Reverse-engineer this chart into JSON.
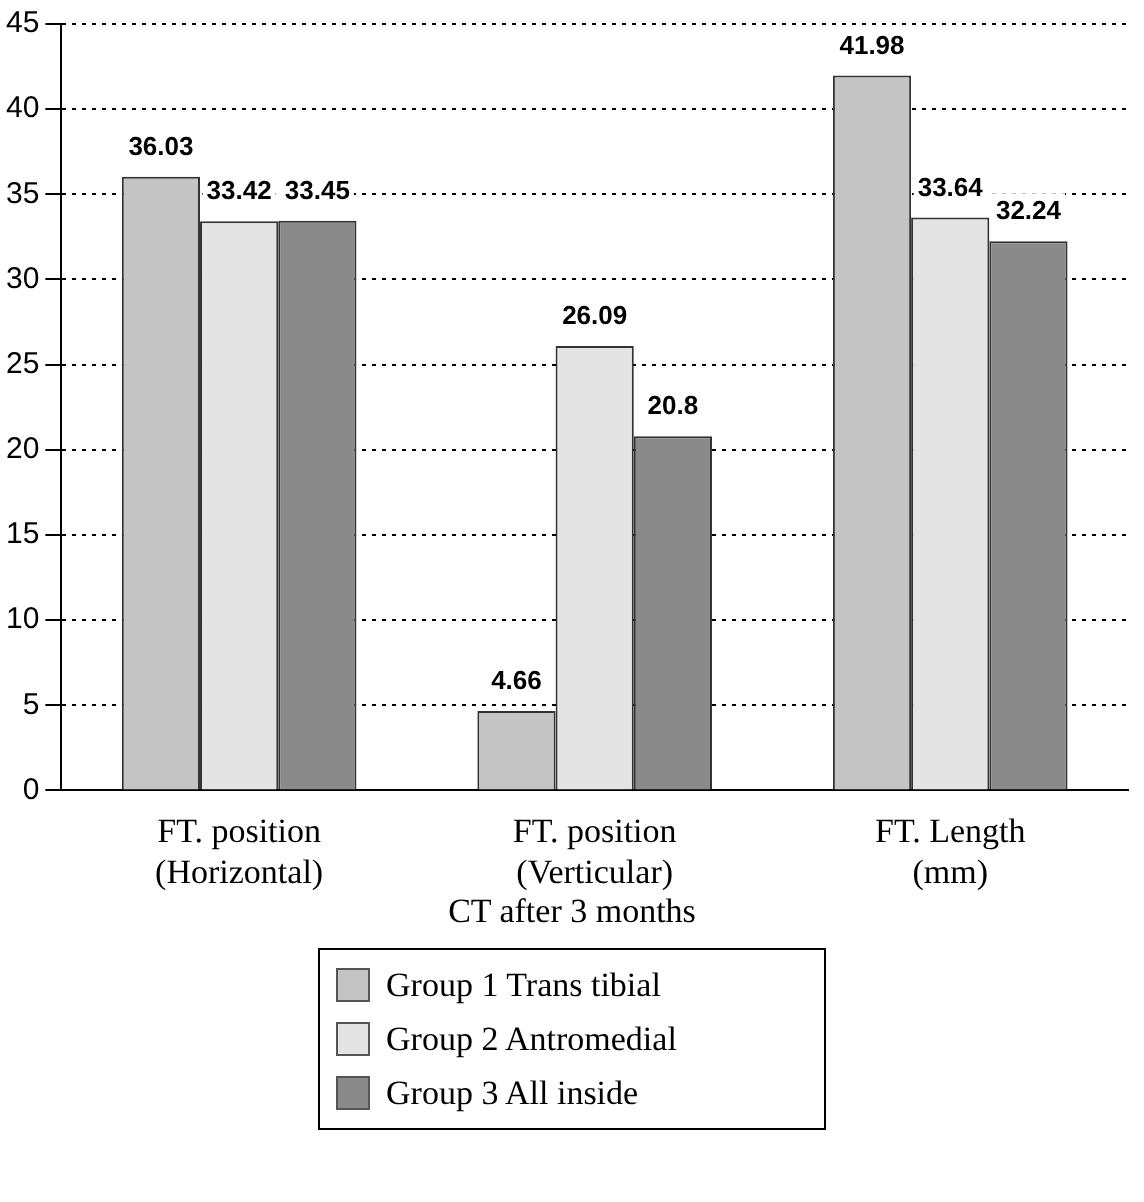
{
  "chart_data": {
    "type": "bar",
    "xlabel": "CT after 3 months",
    "categories": [
      "FT. position (Horizontal)",
      "FT. position (Verticular)",
      "FT. Length (mm)"
    ],
    "series": [
      {
        "name": "Group 1 Trans tibial",
        "color": "#c4c4c4",
        "values": [
          36.03,
          4.66,
          41.98
        ]
      },
      {
        "name": "Group 2 Antromedial",
        "color": "#e4e4e4",
        "values": [
          33.42,
          26.09,
          33.64
        ]
      },
      {
        "name": "Group 3 All inside",
        "color": "#8a8a8a",
        "values": [
          33.45,
          20.8,
          32.24
        ]
      }
    ],
    "ylim": [
      0,
      45
    ],
    "yticks": [
      0,
      5,
      10,
      15,
      20,
      25,
      30,
      35,
      40,
      45
    ],
    "grid": "y",
    "legend": "bottom",
    "data_labels": true
  }
}
